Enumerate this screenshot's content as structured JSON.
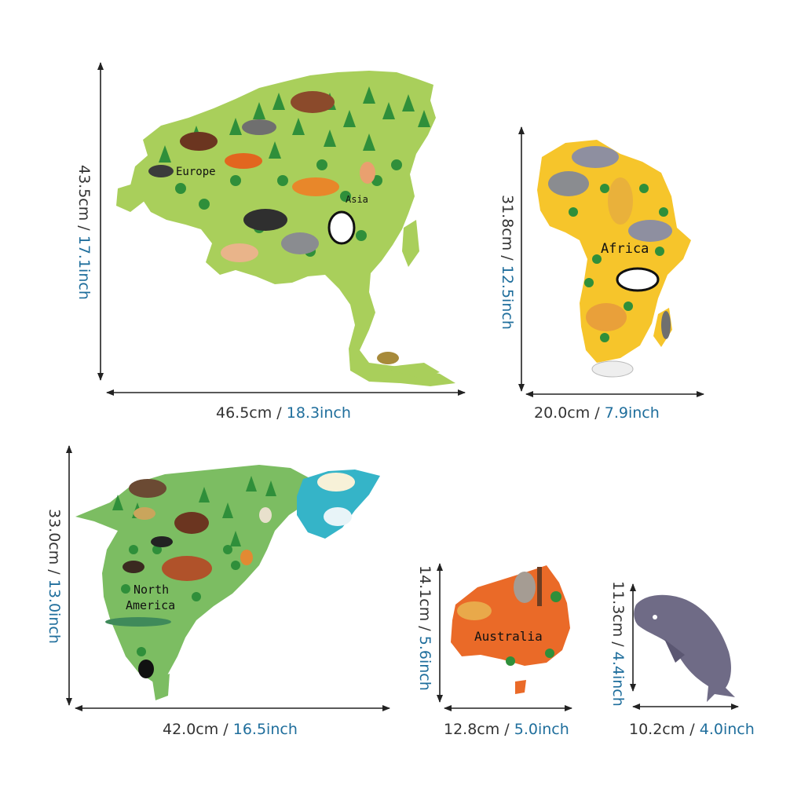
{
  "colors": {
    "cm_text": "#333333",
    "inch_text": "#1f6e9c",
    "eurasia": "#a9cf5b",
    "africa": "#f6c52b",
    "north_america": "#7cbd62",
    "greenland": "#35b4c8",
    "australia": "#ea6a28",
    "whale": "#6f6b86",
    "tree": "#2f8f3a"
  },
  "pieces": [
    {
      "id": "eurasia",
      "continent_label": "Europe",
      "continent_label_2": "Asia",
      "width": {
        "cm": "46.5cm",
        "sep": " / ",
        "inch": "18.3inch"
      },
      "height": {
        "cm": "43.5cm",
        "sep": " / ",
        "inch": "17.1inch"
      }
    },
    {
      "id": "africa",
      "continent_label": "Africa",
      "width": {
        "cm": "20.0cm",
        "sep": " / ",
        "inch": "7.9inch"
      },
      "height": {
        "cm": "31.8cm",
        "sep": " / ",
        "inch": "12.5inch"
      }
    },
    {
      "id": "north-america",
      "continent_label": "North",
      "continent_label_2": "America",
      "width": {
        "cm": "42.0cm",
        "sep": " / ",
        "inch": "16.5inch"
      },
      "height": {
        "cm": "33.0cm",
        "sep": " / ",
        "inch": "13.0inch"
      }
    },
    {
      "id": "australia",
      "continent_label": "Australia",
      "width": {
        "cm": "12.8cm",
        "sep": " / ",
        "inch": "5.0inch"
      },
      "height": {
        "cm": "14.1cm",
        "sep": " / ",
        "inch": "5.6inch"
      }
    },
    {
      "id": "whale",
      "width": {
        "cm": "10.2cm",
        "sep": " / ",
        "inch": "4.0inch"
      },
      "height": {
        "cm": "11.3cm",
        "sep": " / ",
        "inch": "4.4inch"
      }
    }
  ]
}
